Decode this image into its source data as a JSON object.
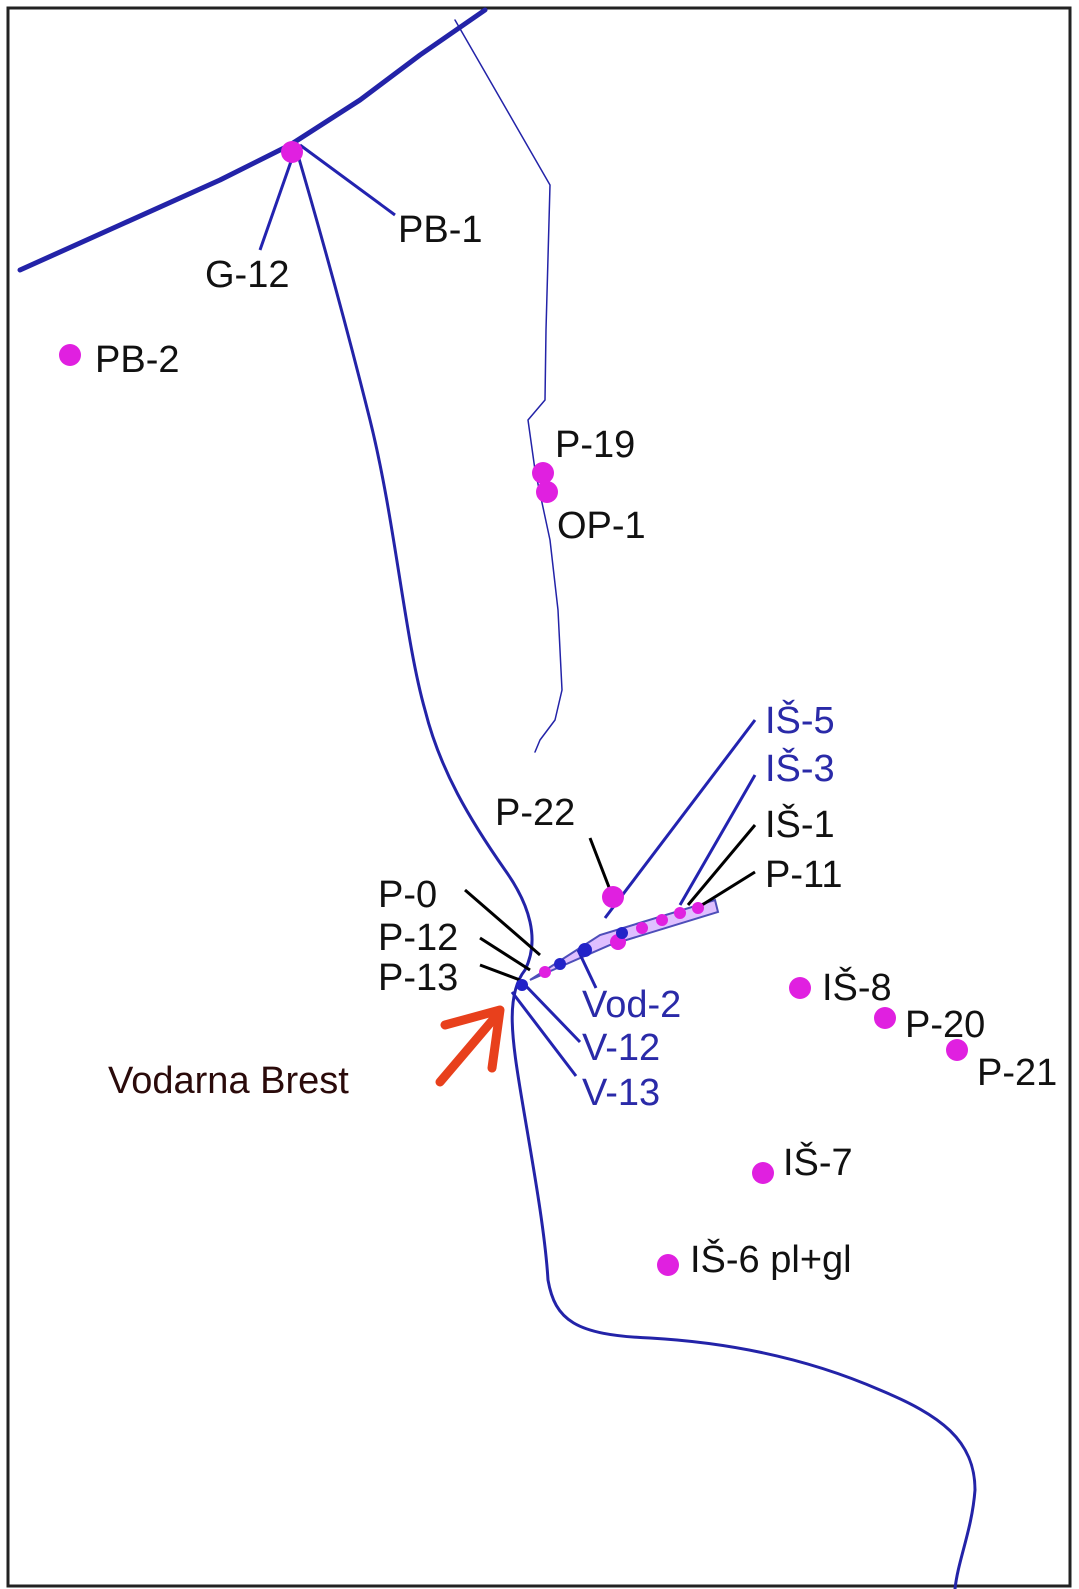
{
  "labels": [
    "PB-1",
    "G-12",
    "PB-2",
    "P-19",
    "OP-1",
    "IŠ-5",
    "IŠ-3",
    "IŠ-1",
    "P-22",
    "P-11",
    "P-0",
    "P-12",
    "P-13",
    "Vod-2",
    "IŠ-8",
    "P-20",
    "P-21",
    "V-12",
    "V-13",
    "Vodarna Brest",
    "IŠ-7",
    "IŠ-6 pl+gl"
  ]
}
